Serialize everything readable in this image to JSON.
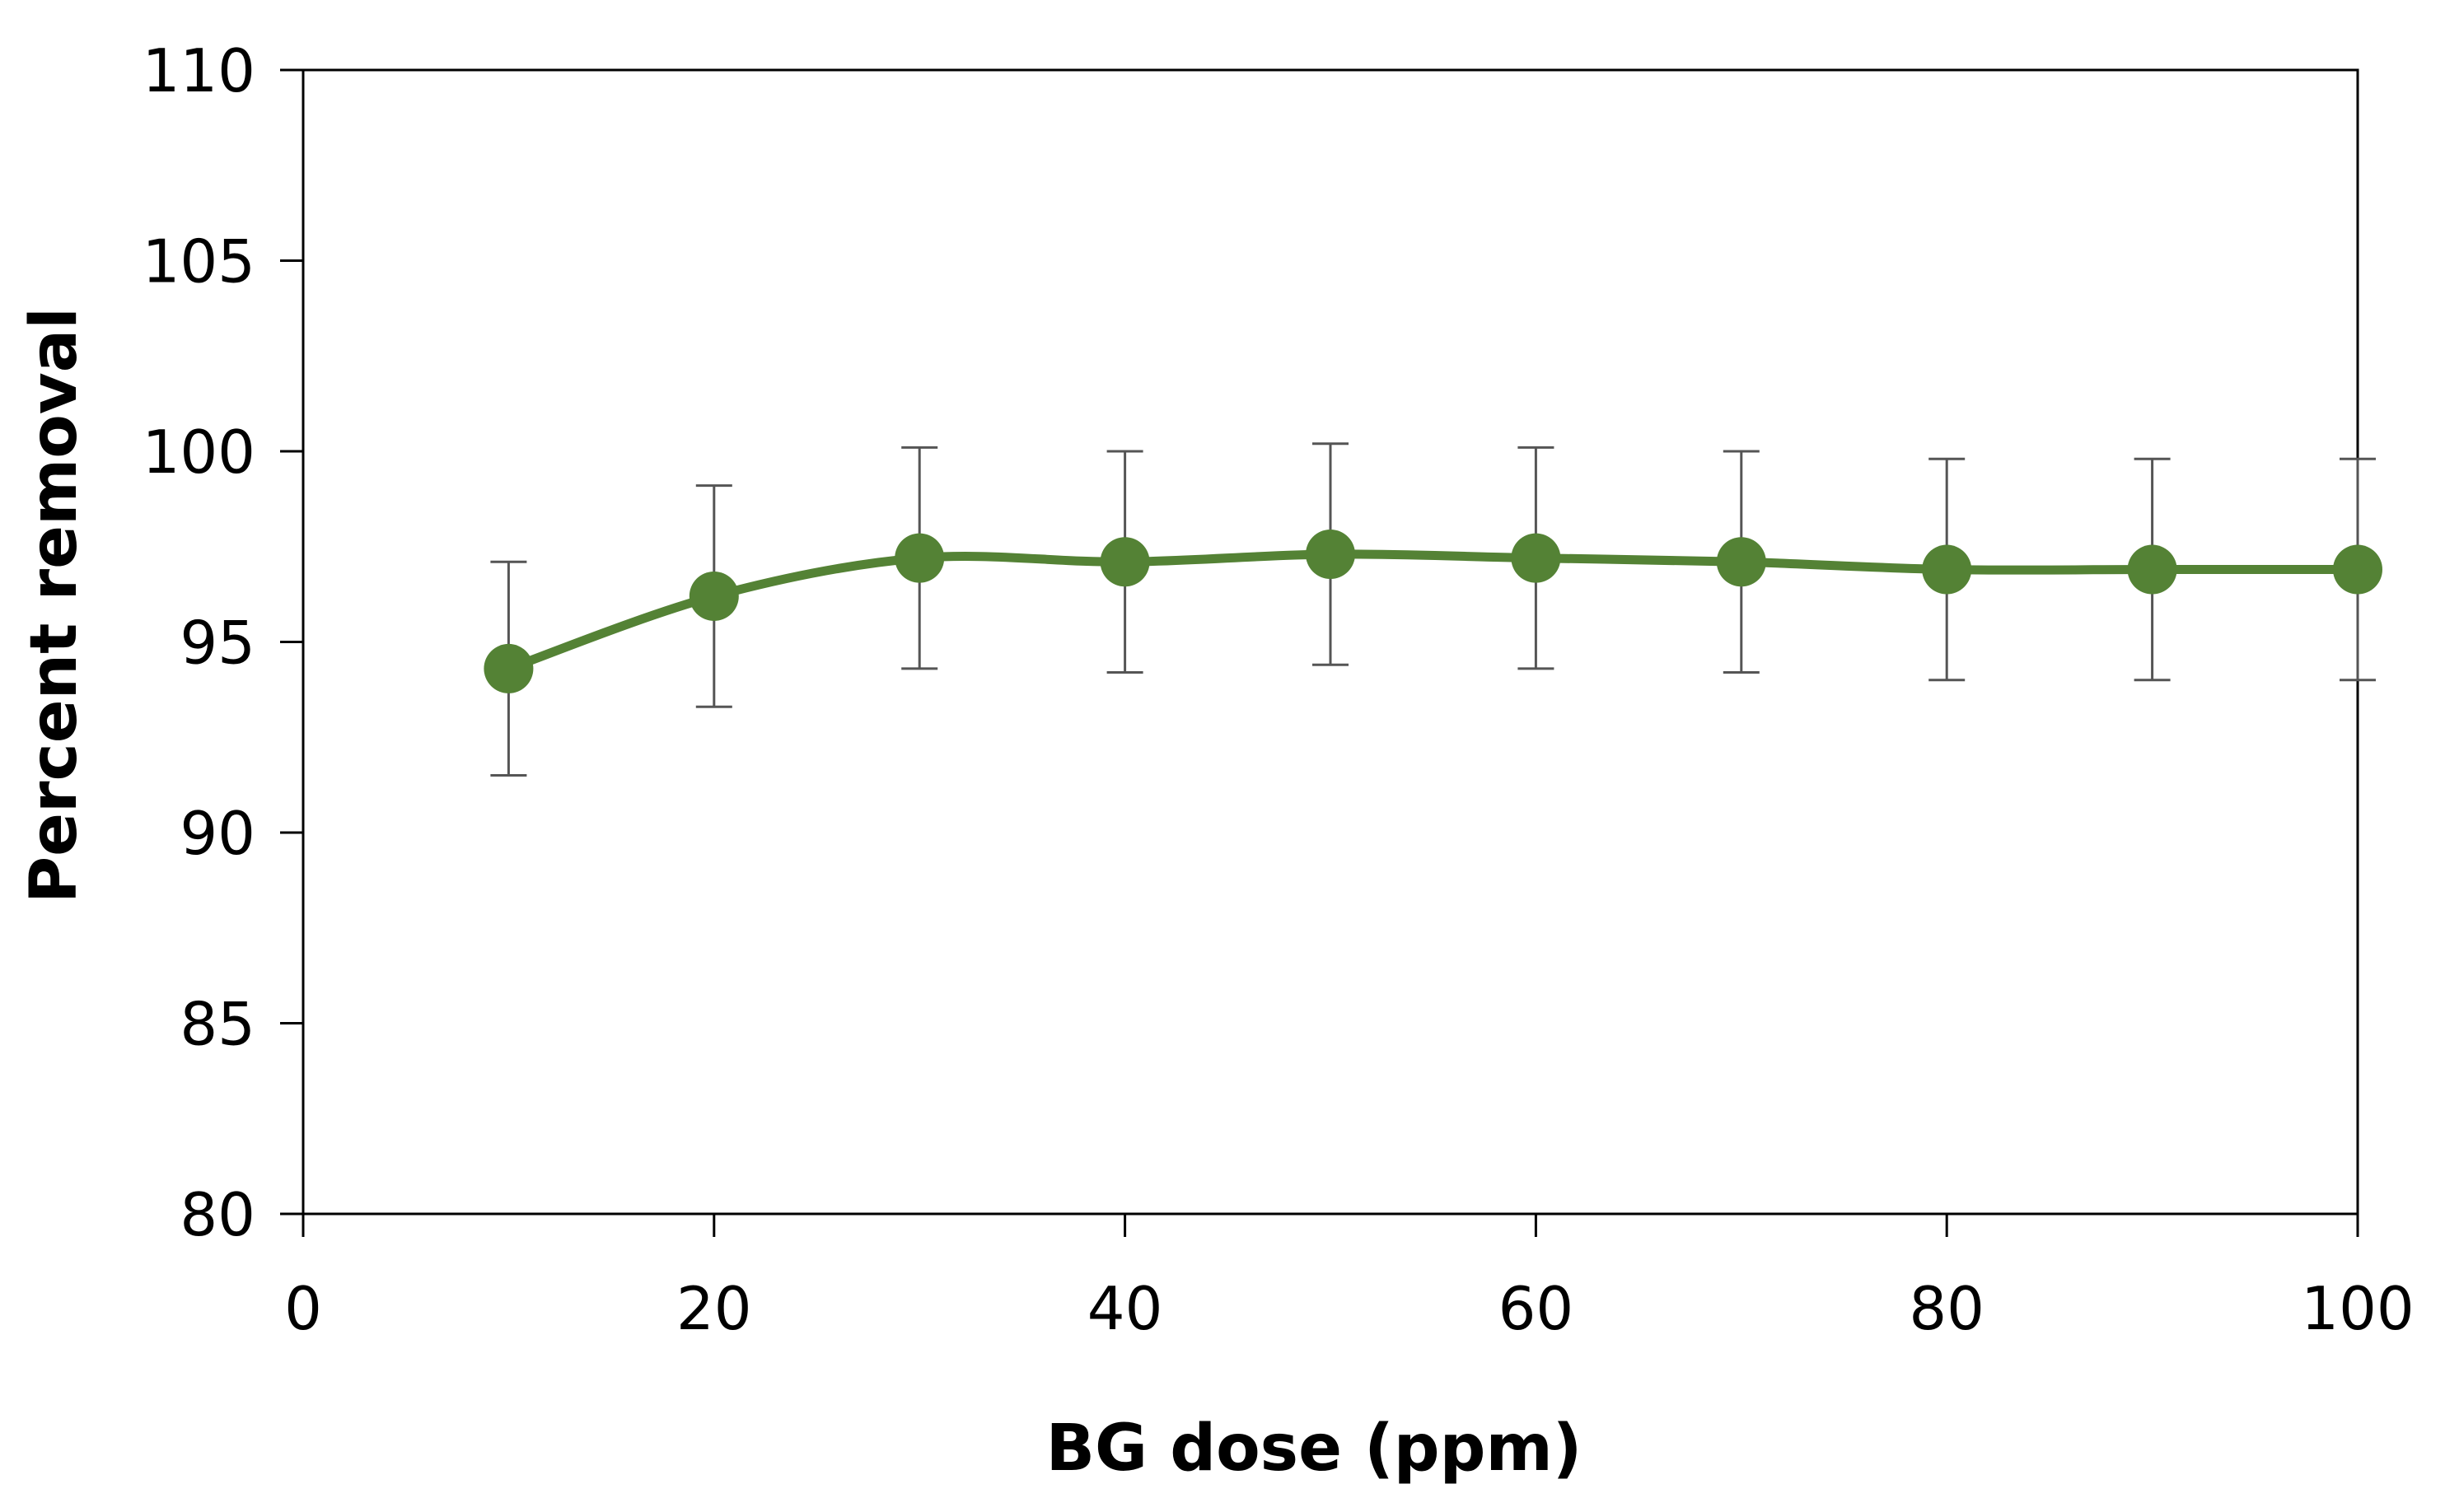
{
  "chart_data": {
    "type": "line",
    "title": "",
    "xlabel": "BG dose (ppm)",
    "ylabel": "Percent removal",
    "xlim": [
      0,
      100
    ],
    "ylim": [
      80,
      110
    ],
    "xticks": [
      0,
      20,
      40,
      60,
      80,
      100
    ],
    "yticks": [
      80,
      85,
      90,
      95,
      100,
      105,
      110
    ],
    "xtick_labels": [
      "0",
      "20",
      "40",
      "60",
      "80",
      "100"
    ],
    "ytick_labels": [
      "80",
      "85",
      "90",
      "95",
      "100",
      "105",
      "110"
    ],
    "grid": false,
    "legend": "none",
    "series": [
      {
        "name": "Percent removal",
        "color": "#548235",
        "x": [
          10,
          20,
          30,
          40,
          50,
          60,
          70,
          80,
          90,
          100
        ],
        "y": [
          94.3,
          96.2,
          97.2,
          97.1,
          97.3,
          97.2,
          97.1,
          96.9,
          96.9,
          96.9
        ],
        "error": [
          2.8,
          2.9,
          2.9,
          2.9,
          2.9,
          2.9,
          2.9,
          2.9,
          2.9,
          2.9
        ]
      }
    ],
    "error_bar_color": "#555555"
  }
}
